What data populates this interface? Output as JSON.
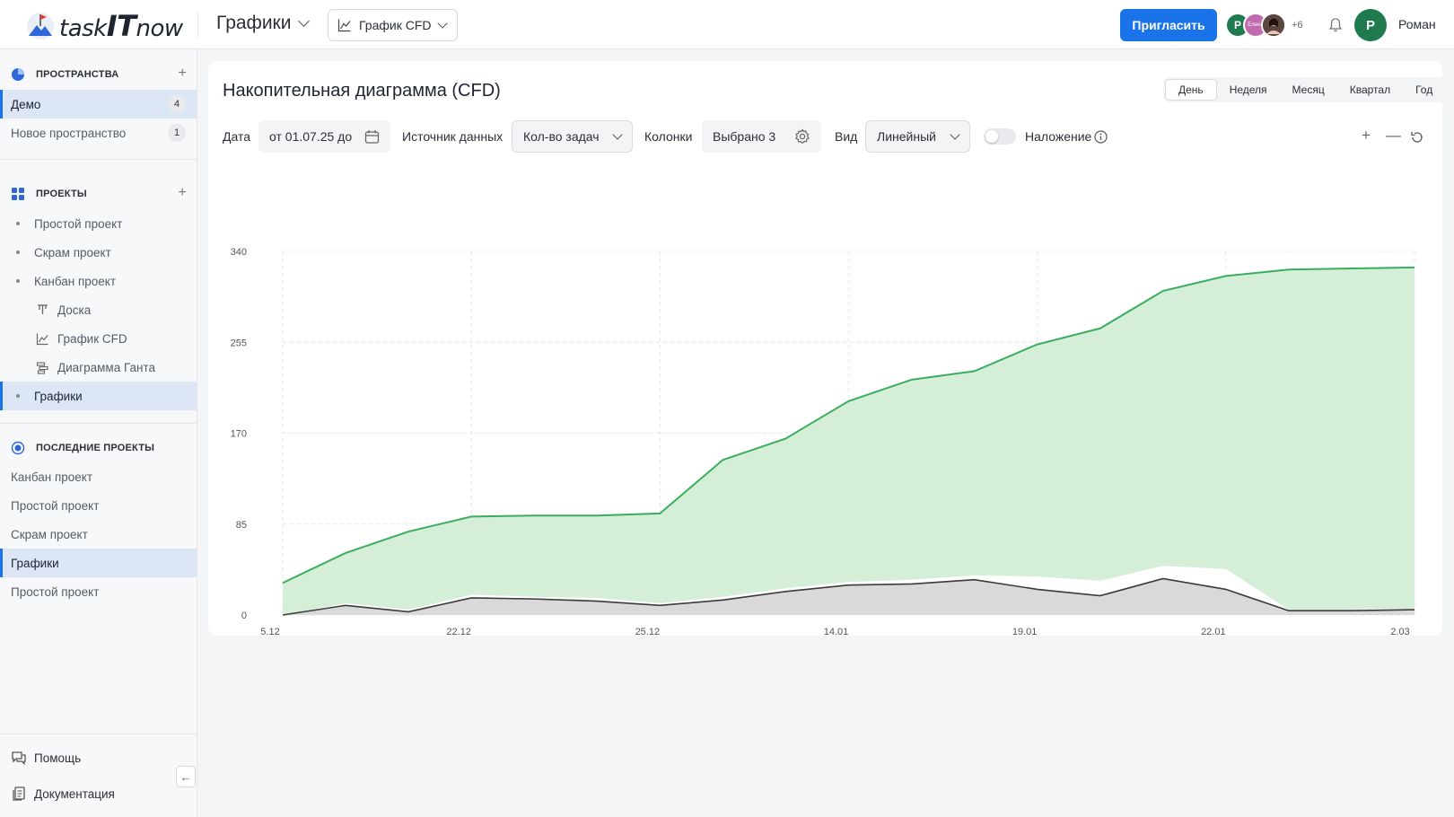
{
  "header": {
    "logo_word_1": "task",
    "logo_word_2": "IT",
    "logo_word_3": "now",
    "page_title": "Графики",
    "view_select": "График CFD",
    "invite_label": "Пригласить",
    "avatars": [
      {
        "initial": "Р",
        "color": "#1f7a4d"
      },
      {
        "initial": "Елена",
        "color": "#c06bb0"
      },
      {
        "initial": "",
        "color": "#3a2e2a"
      }
    ],
    "avatars_more": "+6",
    "user_initial": "Р",
    "user_name": "Роман"
  },
  "sidebar": {
    "spaces_title": "ПРОСТРАНСТВА",
    "spaces": [
      {
        "label": "Демо",
        "count": "4"
      },
      {
        "label": "Новое пространство",
        "count": "1"
      }
    ],
    "projects_title": "ПРОЕКТЫ",
    "projects": [
      "Простой проект",
      "Скрам проект",
      "Канбан проект"
    ],
    "kanban_children": [
      "Доска",
      "График CFD",
      "Диаграмма Ганта"
    ],
    "charts_item": "Графики",
    "recent_title": "ПОСЛЕДНИЕ ПРОЕКТЫ",
    "recent": [
      "Канбан проект",
      "Простой проект",
      "Скрам проект",
      "Графики",
      "Простой проект"
    ],
    "help": "Помощь",
    "docs": "Документация"
  },
  "card": {
    "title": "Накопительная диаграмма (CFD)",
    "periods": [
      "День",
      "Неделя",
      "Месяц",
      "Квартал",
      "Год"
    ],
    "date_label": "Дата",
    "date_value": "от 01.07.25 до",
    "source_label": "Источник данных",
    "source_value": "Кол-во задач",
    "columns_label": "Колонки",
    "columns_value": "Выбрано 3",
    "view_label": "Вид",
    "view_value": "Линейный",
    "overlay_label": "Наложение"
  },
  "colors": {
    "accent": "#1a73e8",
    "green_line": "#3aae5c",
    "green_fill": "#d5eed8",
    "gray_fill": "#d9d9d9",
    "dark_line": "#3a3a3a"
  },
  "chart_data": {
    "type": "area",
    "xlabels": [
      "5.12",
      "22.12",
      "25.12",
      "14.01",
      "19.01",
      "22.01",
      "2.03"
    ],
    "yticks": [
      0,
      85,
      170,
      255,
      340
    ],
    "ylim": [
      0,
      340
    ],
    "grid": true,
    "series": [
      {
        "color": "#3aae5c",
        "values": [
          30,
          58,
          78,
          92,
          93,
          93,
          95,
          145,
          165,
          200,
          220,
          228,
          253,
          268,
          303,
          317,
          323,
          324,
          325
        ]
      },
      {
        "color": "#3a3a3a",
        "values": [
          0,
          9,
          3,
          16,
          15,
          13,
          9,
          14,
          22,
          28,
          29,
          33,
          24,
          18,
          34,
          24,
          4,
          4,
          5
        ]
      },
      {
        "color": "#ffffff",
        "values": [
          0,
          11,
          5,
          19,
          17,
          16,
          11,
          17,
          25,
          31,
          33,
          37,
          36,
          32,
          46,
          43,
          5,
          5,
          6
        ]
      }
    ]
  }
}
